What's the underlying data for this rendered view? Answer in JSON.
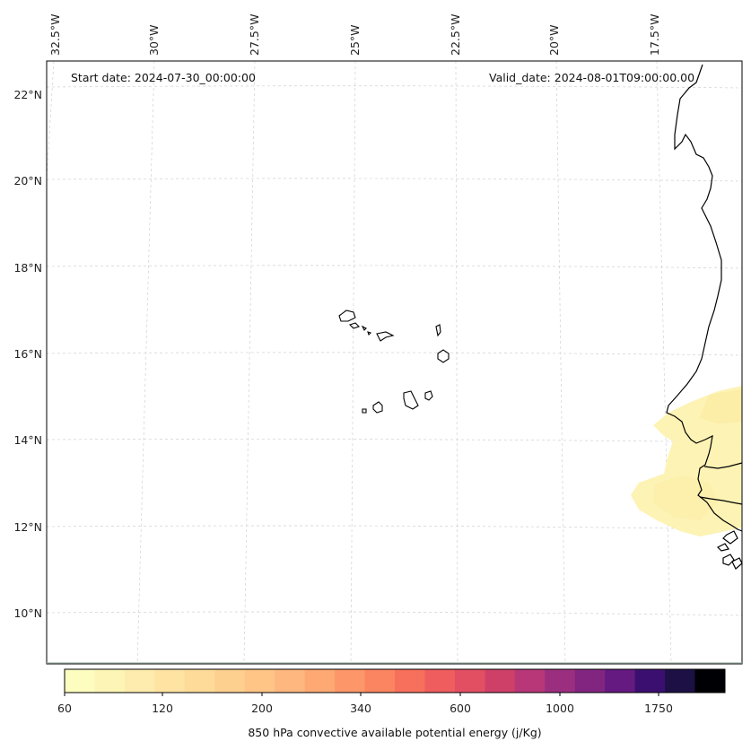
{
  "header": {
    "start_date": "Start date: 2024-07-30_00:00:00",
    "valid_date": "Valid_date: 2024-08-01T09:00:00.00"
  },
  "lat_labels": [
    "22°N",
    "20°N",
    "18°N",
    "16°N",
    "14°N",
    "12°N",
    "10°N"
  ],
  "lon_labels": [
    "32.5°W",
    "30°W",
    "27.5°W",
    "25°W",
    "22.5°W",
    "20°W",
    "17.5°W"
  ],
  "colorbar": {
    "label": "850 hPa convective available potential energy (j/Kg)",
    "tick_labels": [
      "60",
      "120",
      "200",
      "340",
      "600",
      "1000",
      "1750"
    ],
    "colors": [
      "#fcfdbf",
      "#fdf5b6",
      "#fdecad",
      "#fee3a3",
      "#fedb99",
      "#fed08f",
      "#fec587",
      "#feb77e",
      "#fea873",
      "#fd976a",
      "#fb8561",
      "#f7705c",
      "#ef5d5e",
      "#e24f63",
      "#cf4069",
      "#b73779",
      "#9c2e7f",
      "#812581",
      "#641a80",
      "#3b0f70",
      "#1c1044",
      "#000004"
    ]
  },
  "map_features": {
    "coastline": "west-africa",
    "islands": "cabo-verde",
    "field_color": "#fdf2b0"
  }
}
